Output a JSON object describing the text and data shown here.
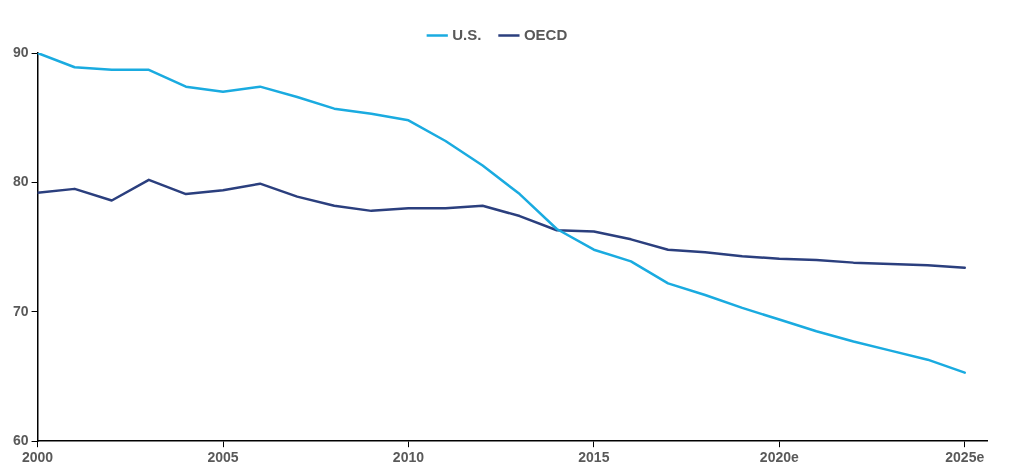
{
  "chart_data": {
    "type": "line",
    "x": [
      2000,
      2001,
      2002,
      2003,
      2004,
      2005,
      2006,
      2007,
      2008,
      2009,
      2010,
      2011,
      2012,
      2013,
      2014,
      2015,
      2016,
      2017,
      2018,
      2019,
      2020,
      2021,
      2022,
      2023,
      2024,
      2025
    ],
    "series": [
      {
        "name": "U.S.",
        "color": "#1aabe0",
        "values": [
          90.0,
          88.9,
          88.7,
          88.7,
          87.4,
          87.0,
          87.4,
          86.6,
          85.7,
          85.3,
          84.8,
          83.2,
          81.3,
          79.1,
          76.4,
          74.8,
          73.9,
          72.2,
          71.3,
          70.3,
          69.4,
          68.5,
          67.7,
          67.0,
          66.3,
          65.3
        ]
      },
      {
        "name": "OECD",
        "color": "#2b3f7e",
        "values": [
          79.2,
          79.5,
          78.6,
          80.2,
          79.1,
          79.4,
          79.9,
          78.9,
          78.2,
          77.8,
          78.0,
          78.0,
          78.2,
          77.4,
          76.3,
          76.2,
          75.6,
          74.8,
          74.6,
          74.3,
          74.1,
          74.0,
          73.8,
          73.7,
          73.6,
          73.4
        ]
      }
    ],
    "xlim": [
      2000,
      2025.6
    ],
    "xticks": [
      2000,
      2005,
      2010,
      2015,
      {
        "value": 2020,
        "label": "2020e"
      },
      {
        "value": 2025,
        "label": "2025e"
      }
    ],
    "ylim": [
      60,
      90
    ],
    "yticks": [
      60,
      70,
      80,
      90
    ],
    "grid": false,
    "legend": "top",
    "marker": "none",
    "line_style": "solid"
  }
}
